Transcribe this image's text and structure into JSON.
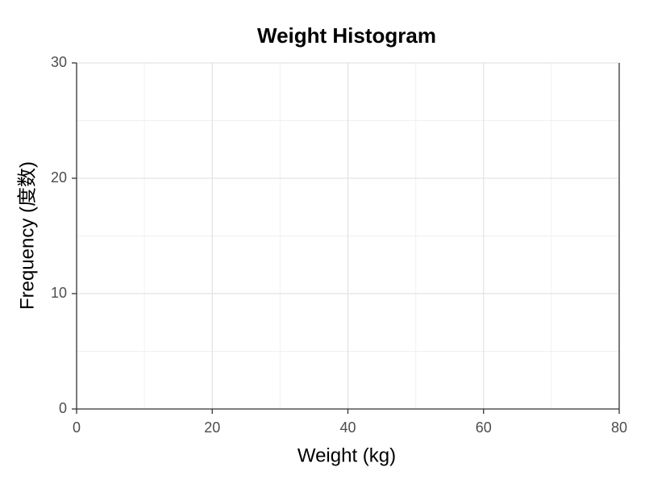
{
  "chart_data": {
    "type": "histogram",
    "title": "Weight Histogram",
    "x_label": "Weight (kg)",
    "y_label": "Frequency (度数)",
    "xlim": [
      0,
      80
    ],
    "xticks": [
      0,
      20,
      40,
      60,
      80
    ],
    "ylim": [
      0,
      30
    ],
    "yticks": [
      0,
      10,
      20,
      30
    ],
    "grid": true
  }
}
